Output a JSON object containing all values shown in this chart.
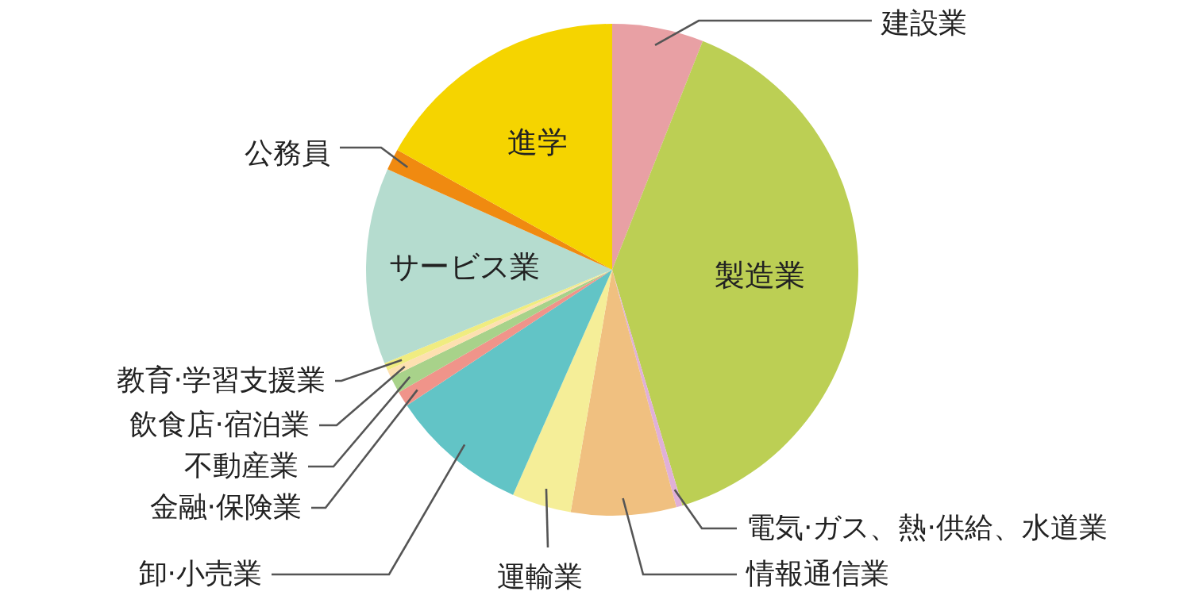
{
  "chart_data": {
    "type": "pie",
    "categories": [
      "建設業",
      "製造業",
      "電気·ガス、熱·供給、水道業",
      "情報通信業",
      "運輸業",
      "卸·小売業",
      "金融·保険業",
      "不動産業",
      "飲食店·宿泊業",
      "教育·学習支援業",
      "サービス業",
      "公務員",
      "進学"
    ],
    "values": [
      6.0,
      39.4,
      0.4,
      6.9,
      3.9,
      9.1,
      1.0,
      1.1,
      0.5,
      0.5,
      12.9,
      1.4,
      16.9
    ],
    "colors": [
      "#e8a0a4",
      "#bccf54",
      "#e0b0d8",
      "#f0c080",
      "#f5ee98",
      "#62c4c6",
      "#f0948a",
      "#a8d28a",
      "#fde0b0",
      "#f0ec80",
      "#b5dccf",
      "#f08a10",
      "#f5d400"
    ]
  }
}
